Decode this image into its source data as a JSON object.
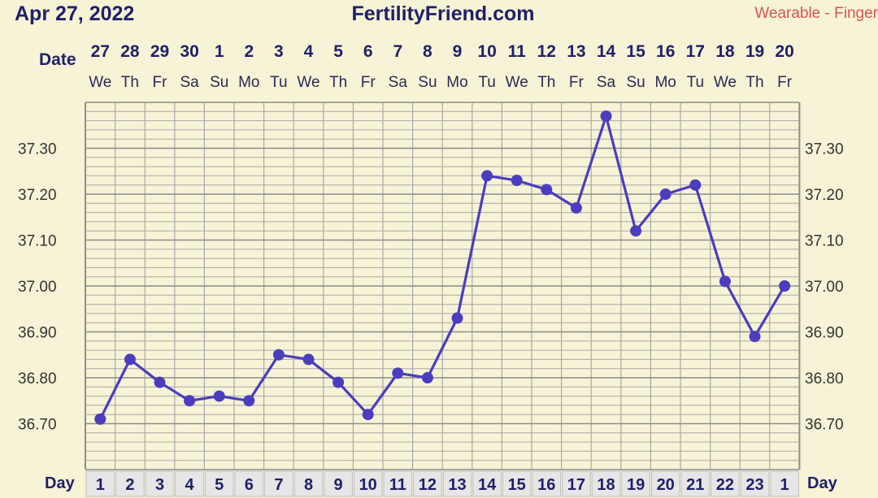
{
  "header": {
    "date_label": "Apr 27, 2022",
    "site_name": "FertilityFriend.com",
    "source_label": "Wearable - Finger"
  },
  "row_labels": {
    "date": "Date",
    "day": "Day"
  },
  "colors": {
    "background": "#f7f3d6",
    "line": "#4b3dbd",
    "grid": "#a8a8a8",
    "header_text": "#1f1f6b",
    "source_text": "#d9534f",
    "day_cell_bg": "#e6e6e6"
  },
  "chart_data": {
    "type": "line",
    "title": "",
    "xlabel": "",
    "ylabel": "",
    "dates": [
      "27",
      "28",
      "29",
      "30",
      "1",
      "2",
      "3",
      "4",
      "5",
      "6",
      "7",
      "8",
      "9",
      "10",
      "11",
      "12",
      "13",
      "14",
      "15",
      "16",
      "17",
      "18",
      "19",
      "20"
    ],
    "weekdays": [
      "We",
      "Th",
      "Fr",
      "Sa",
      "Su",
      "Mo",
      "Tu",
      "We",
      "Th",
      "Fr",
      "Sa",
      "Su",
      "Mo",
      "Tu",
      "We",
      "Th",
      "Fr",
      "Sa",
      "Su",
      "Mo",
      "Tu",
      "We",
      "Th",
      "Fr"
    ],
    "cycle_days": [
      "1",
      "2",
      "3",
      "4",
      "5",
      "6",
      "7",
      "8",
      "9",
      "10",
      "11",
      "12",
      "13",
      "14",
      "15",
      "16",
      "17",
      "18",
      "19",
      "20",
      "21",
      "22",
      "23",
      "1"
    ],
    "y_ticks": [
      "36.70",
      "36.80",
      "36.90",
      "37.00",
      "37.10",
      "37.20",
      "37.30"
    ],
    "ylim": [
      36.6,
      37.4
    ],
    "grid": true,
    "series": [
      {
        "values": [
          36.71,
          36.84,
          36.79,
          36.75,
          36.76,
          36.75,
          36.85,
          36.84,
          36.79,
          36.72,
          36.81,
          36.8,
          36.93,
          37.24,
          37.23,
          37.21,
          37.17,
          37.37,
          37.12,
          37.2,
          37.22,
          37.01,
          36.89,
          37.0
        ]
      }
    ]
  }
}
